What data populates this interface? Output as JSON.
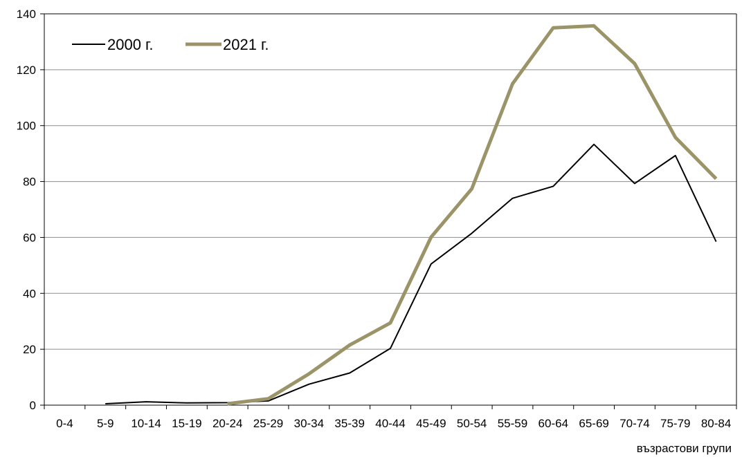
{
  "chart_data": {
    "type": "line",
    "title": "",
    "xlabel": "възрастови групи",
    "ylabel": "",
    "ylim": [
      0,
      140
    ],
    "yticks": [
      0,
      20,
      40,
      60,
      80,
      100,
      120,
      140
    ],
    "grid": "horizontal",
    "legend_position": "top-left",
    "categories": [
      "0-4",
      "5-9",
      "10-14",
      "15-19",
      "20-24",
      "25-29",
      "30-34",
      "35-39",
      "40-44",
      "45-49",
      "50-54",
      "55-59",
      "60-64",
      "65-69",
      "70-74",
      "75-79",
      "80-84"
    ],
    "series": [
      {
        "name": "2000 г.",
        "color": "#000000",
        "values": [
          null,
          0.5,
          1.2,
          0.8,
          0.9,
          1.5,
          7.5,
          11.5,
          20.3,
          50.5,
          61.5,
          74.0,
          78.3,
          93.3,
          79.3,
          89.3,
          58.5
        ]
      },
      {
        "name": "2021 г.",
        "color": "#9b9468",
        "values": [
          null,
          null,
          null,
          null,
          0.5,
          2.3,
          11.2,
          21.5,
          29.4,
          60.1,
          77.4,
          115.0,
          135.0,
          135.7,
          122.2,
          95.8,
          81.0
        ]
      }
    ]
  }
}
